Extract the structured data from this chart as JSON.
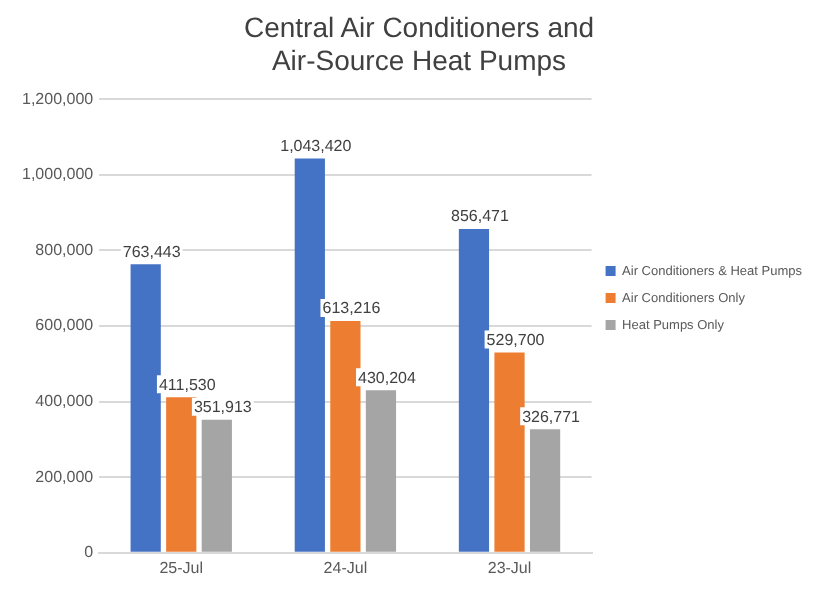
{
  "chart_data": {
    "type": "bar",
    "title": "Central Air Conditioners and Air-Source Heat Pumps",
    "categories": [
      "25-Jul",
      "24-Jul",
      "23-Jul"
    ],
    "series": [
      {
        "name": "Air Conditioners & Heat Pumps",
        "color": "#4472c4",
        "values": [
          763443,
          1043420,
          856471
        ],
        "value_labels": [
          "763,443",
          "1,043,420",
          "856,471"
        ]
      },
      {
        "name": "Air Conditioners Only",
        "color": "#ed7d31",
        "values": [
          411530,
          613216,
          529700
        ],
        "value_labels": [
          "411,530",
          "613,216",
          "529,700"
        ]
      },
      {
        "name": "Heat Pumps Only",
        "color": "#a5a5a5",
        "values": [
          351913,
          430204,
          326771
        ],
        "value_labels": [
          "351,913",
          "430,204",
          "326,771"
        ]
      }
    ],
    "ylim": [
      0,
      1200000
    ],
    "yticks": [
      0,
      {
        "value": 200000,
        "label": "200,000"
      },
      {
        "value": 400000,
        "label": "400,000"
      },
      {
        "value": 600000,
        "label": "600,000"
      },
      {
        "value": 800000,
        "label": "800,000"
      },
      {
        "value": 1000000,
        "label": "1,000,000"
      },
      {
        "value": 1200000,
        "label": "1,200,000"
      }
    ],
    "grid": "y",
    "legend": "right"
  }
}
